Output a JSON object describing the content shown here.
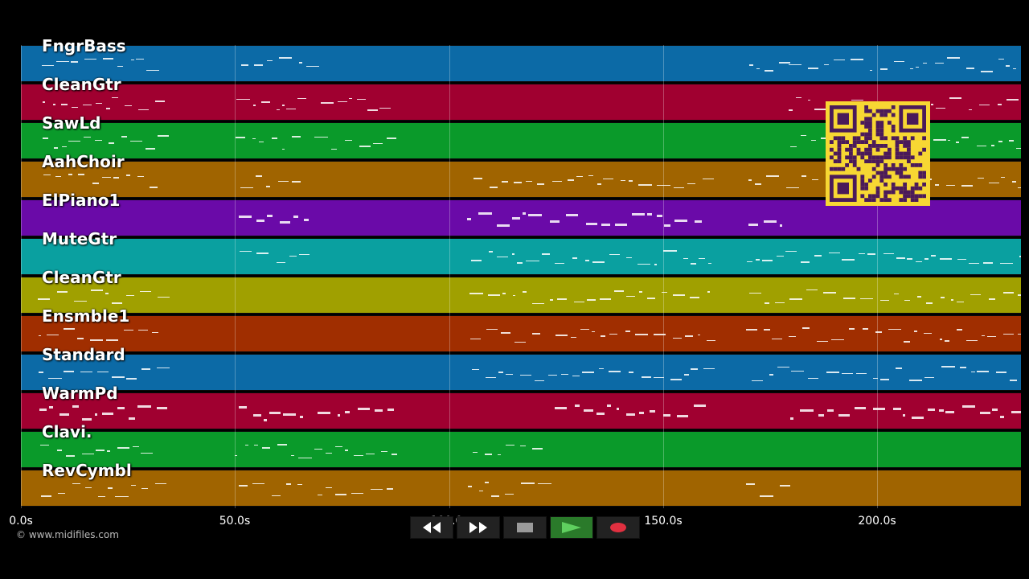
{
  "tracks": [
    {
      "name": "FngrBass",
      "color": "#0c6aa6"
    },
    {
      "name": "CleanGtr",
      "color": "#a00030"
    },
    {
      "name": "SawLd",
      "color": "#0a9a2a"
    },
    {
      "name": "AahChoir",
      "color": "#a06400"
    },
    {
      "name": "ElPiano1",
      "color": "#6a0aa8"
    },
    {
      "name": "MuteGtr",
      "color": "#0aa0a0"
    },
    {
      "name": "CleanGtr",
      "color": "#a0a000"
    },
    {
      "name": "Ensmble1",
      "color": "#a02e00"
    },
    {
      "name": "Standard",
      "color": "#0c6aa6"
    },
    {
      "name": "WarmPd",
      "color": "#a00030"
    },
    {
      "name": "Clavi.",
      "color": "#0a9a2a"
    },
    {
      "name": "RevCymbl",
      "color": "#a06400"
    }
  ],
  "timeline": {
    "ticks": [
      "0.0s",
      "50.0s",
      "100.0s",
      "150.0s",
      "200.0s"
    ]
  },
  "copyright": "© www.midifiles.com",
  "transport": {
    "buttons": [
      {
        "name": "rewind-button",
        "icon": "rewind-icon",
        "color": "#ffffff"
      },
      {
        "name": "fast-forward-button",
        "icon": "fast-forward-icon",
        "color": "#ffffff"
      },
      {
        "name": "stop-button",
        "icon": "stop-icon",
        "color": "#9a9a9a"
      },
      {
        "name": "play-button",
        "icon": "play-icon",
        "color": "#5fd05f"
      },
      {
        "name": "record-button",
        "icon": "record-icon",
        "color": "#e03040"
      }
    ]
  },
  "qr_code": {
    "icon": "qr-code-icon",
    "color": "#f7d733"
  }
}
